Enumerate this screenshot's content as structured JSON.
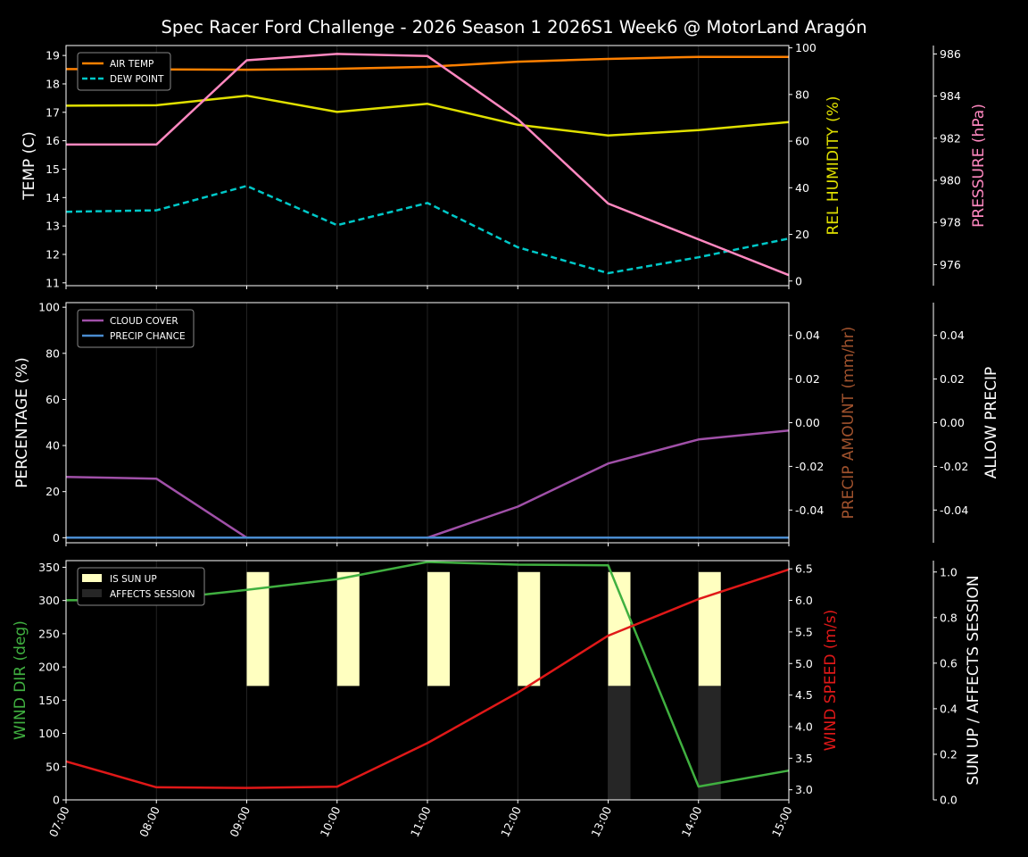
{
  "title": "Spec Racer Ford Challenge - 2026 Season 1 2026S1 Week6 @ MotorLand Aragón",
  "chart_data": [
    {
      "type": "line",
      "x": [
        "07:00",
        "08:00",
        "09:00",
        "10:00",
        "11:00",
        "12:00",
        "13:00",
        "14:00",
        "15:00"
      ],
      "grid": "vertical",
      "legend": "top-left",
      "axes": {
        "left": {
          "label": "TEMP (C)",
          "ylim": [
            10.9,
            19.35
          ],
          "ticks": [
            11,
            12,
            13,
            14,
            15,
            16,
            17,
            18,
            19
          ],
          "color": "#ffffff"
        },
        "right": {
          "label": "REL HUMIDITY (%)",
          "ylim": [
            -2,
            101
          ],
          "ticks": [
            0,
            20,
            40,
            60,
            80,
            100
          ],
          "color": "#e0e000"
        },
        "right2": {
          "label": "PRESSURE (hPa)",
          "ylim": [
            975.0,
            986.4
          ],
          "ticks": [
            976,
            978,
            980,
            982,
            984,
            986
          ],
          "color": "#ff88c0"
        }
      },
      "series": [
        {
          "name": "AIR TEMP",
          "axis": "left",
          "color": "#ff8000",
          "dash": false,
          "legend": true,
          "values": [
            18.52,
            18.51,
            18.5,
            18.53,
            18.6,
            18.78,
            18.88,
            18.95,
            18.95
          ]
        },
        {
          "name": "DEW POINT",
          "axis": "left",
          "color": "#00c8c8",
          "dash": true,
          "legend": true,
          "values": [
            13.5,
            13.55,
            14.41,
            13.03,
            13.81,
            12.25,
            11.34,
            11.9,
            12.56
          ]
        },
        {
          "axis": "right",
          "color": "#e0e000",
          "dash": false,
          "legend": false,
          "values": [
            75.2,
            75.4,
            79.5,
            72.5,
            76.0,
            67.0,
            62.4,
            64.7,
            68.2
          ]
        },
        {
          "axis": "right2",
          "color": "#ff88c0",
          "dash": false,
          "legend": false,
          "values": [
            981.7,
            981.7,
            985.7,
            986.0,
            985.9,
            982.9,
            978.9,
            977.2,
            975.5
          ]
        }
      ]
    },
    {
      "type": "line",
      "x": [
        "07:00",
        "08:00",
        "09:00",
        "10:00",
        "11:00",
        "12:00",
        "13:00",
        "14:00",
        "15:00"
      ],
      "grid": "vertical",
      "legend": "top-left",
      "axes": {
        "left": {
          "label": "PERCENTAGE (%)",
          "ylim": [
            -2.2,
            102
          ],
          "ticks": [
            0,
            20,
            40,
            60,
            80,
            100
          ],
          "color": "#ffffff"
        },
        "right": {
          "label": "PRECIP AMOUNT (mm/hr)",
          "ylim": [
            -0.055,
            0.055
          ],
          "ticks": [
            -0.04,
            -0.02,
            0.0,
            0.02,
            0.04
          ],
          "color": "#a0522d"
        },
        "right2": {
          "label": "ALLOW PRECIP",
          "ylim": [
            -0.055,
            0.055
          ],
          "ticks": [
            -0.04,
            -0.02,
            0.0,
            0.02,
            0.04
          ],
          "color": "#ffffff"
        }
      },
      "series": [
        {
          "name": "CLOUD COVER",
          "axis": "left",
          "color": "#a050a8",
          "dash": false,
          "legend": true,
          "values": [
            26.4,
            25.6,
            0,
            0,
            0,
            13.5,
            32.2,
            42.6,
            46.5
          ]
        },
        {
          "name": "PRECIP CHANCE",
          "axis": "left",
          "color": "#4a8cd0",
          "dash": false,
          "legend": true,
          "values": [
            0,
            0,
            0,
            0,
            0,
            0,
            0,
            0,
            0
          ]
        }
      ]
    },
    {
      "type": "line",
      "x": [
        "07:00",
        "08:00",
        "09:00",
        "10:00",
        "11:00",
        "12:00",
        "13:00",
        "14:00",
        "15:00"
      ],
      "grid": "vertical",
      "legend": "top-left",
      "axes": {
        "left": {
          "label": "WIND DIR (deg)",
          "ylim": [
            0,
            360
          ],
          "ticks": [
            0,
            50,
            100,
            150,
            200,
            250,
            300,
            350
          ],
          "color": "#40b040"
        },
        "right": {
          "label": "WIND SPEED (m/s)",
          "ylim": [
            2.84,
            6.63
          ],
          "ticks": [
            3.0,
            3.5,
            4.0,
            4.5,
            5.0,
            5.5,
            6.0,
            6.5
          ],
          "color": "#e01818"
        },
        "right2": {
          "label": "SUN UP / AFFECTS SESSION",
          "ylim": [
            0,
            1.05
          ],
          "ticks": [
            0.0,
            0.2,
            0.4,
            0.6,
            0.8,
            1.0
          ],
          "color": "#ffffff"
        }
      },
      "bars": [
        {
          "name": "IS SUN UP",
          "color": "#ffffc0",
          "values": [
            0,
            0,
            1,
            1,
            1,
            1,
            1,
            1,
            0
          ]
        },
        {
          "name": "AFFECTS SESSION",
          "color": "#262626",
          "values": [
            0,
            0,
            0,
            0,
            0,
            0,
            1,
            1,
            0
          ]
        }
      ],
      "series": [
        {
          "axis": "left",
          "color": "#40b040",
          "dash": false,
          "legend": false,
          "values": [
            300.4,
            301,
            316,
            332,
            358,
            354,
            353,
            20,
            44
          ]
        },
        {
          "axis": "right",
          "color": "#e01818",
          "dash": false,
          "legend": false,
          "values": [
            3.45,
            3.04,
            3.03,
            3.05,
            3.74,
            4.54,
            5.44,
            6.02,
            6.49
          ]
        }
      ]
    }
  ]
}
